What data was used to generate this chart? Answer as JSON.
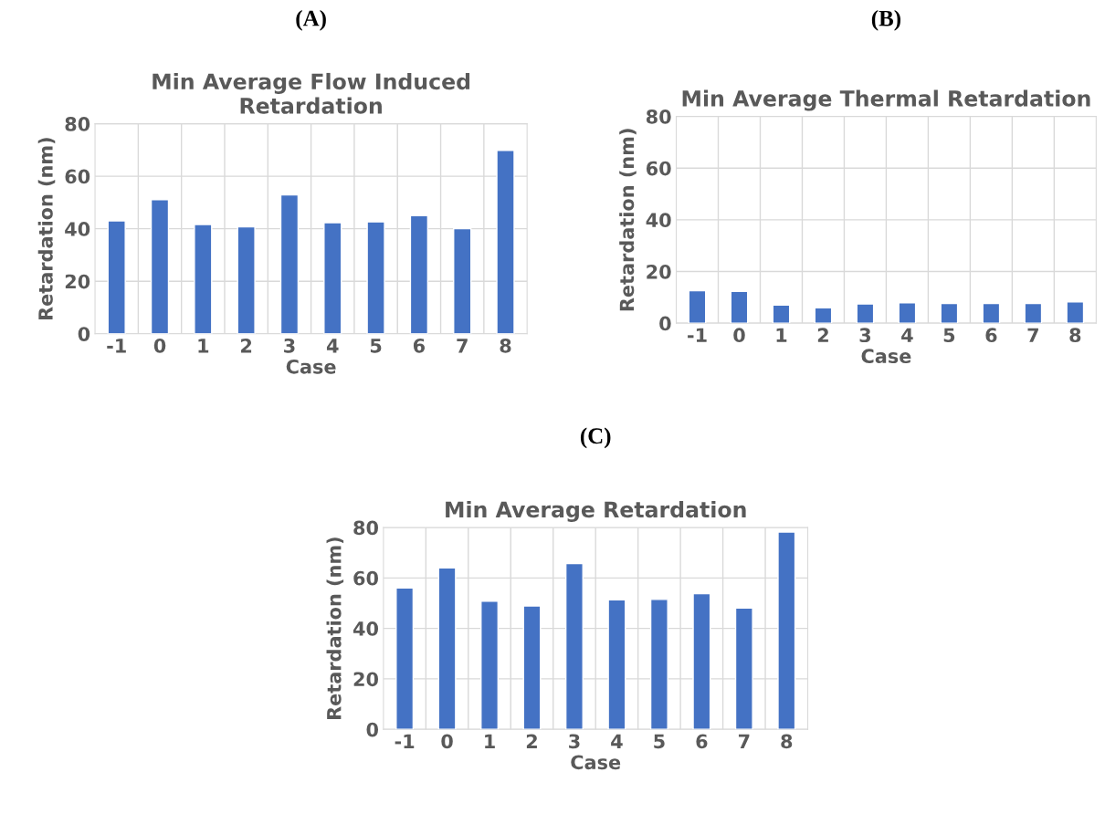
{
  "chart_data": [
    {
      "type": "bar",
      "annotations": [
        "(A)"
      ],
      "title": "Min Average Flow Induced\nRetardation",
      "xlabel": "Case",
      "ylabel": "Retardation (nm)",
      "categories": [
        "-1",
        "0",
        "1",
        "2",
        "3",
        "4",
        "5",
        "6",
        "7",
        "8"
      ],
      "values": [
        43.0,
        51.1,
        41.6,
        40.7,
        52.9,
        42.3,
        42.6,
        45.0,
        40.0,
        69.8
      ],
      "color": "#4472c4",
      "ylim": [
        0,
        80
      ],
      "yticks": [
        0,
        20,
        40,
        60,
        80
      ],
      "grid": true
    },
    {
      "type": "bar",
      "annotations": [
        "(B)"
      ],
      "title": "Min Average Thermal Retardation",
      "xlabel": "Case",
      "ylabel": "Retardation (nm)",
      "categories": [
        "-1",
        "0",
        "1",
        "2",
        "3",
        "4",
        "5",
        "6",
        "7",
        "8"
      ],
      "values": [
        12.6,
        12.3,
        7.0,
        5.9,
        7.4,
        7.9,
        7.6,
        7.6,
        7.6,
        8.2
      ],
      "color": "#4472c4",
      "ylim": [
        0,
        80
      ],
      "yticks": [
        0,
        20,
        40,
        60,
        80
      ],
      "grid": true
    },
    {
      "type": "bar",
      "annotations": [
        "(C)"
      ],
      "title": "Min Average Retardation",
      "xlabel": "Case",
      "ylabel": "Retardation (nm)",
      "categories": [
        "-1",
        "0",
        "1",
        "2",
        "3",
        "4",
        "5",
        "6",
        "7",
        "8"
      ],
      "values": [
        56.0,
        64.0,
        50.8,
        48.9,
        65.7,
        51.3,
        51.5,
        53.8,
        48.1,
        78.2
      ],
      "color": "#4472c4",
      "ylim": [
        0,
        80
      ],
      "yticks": [
        0,
        20,
        40,
        60,
        80
      ],
      "grid": true
    }
  ]
}
